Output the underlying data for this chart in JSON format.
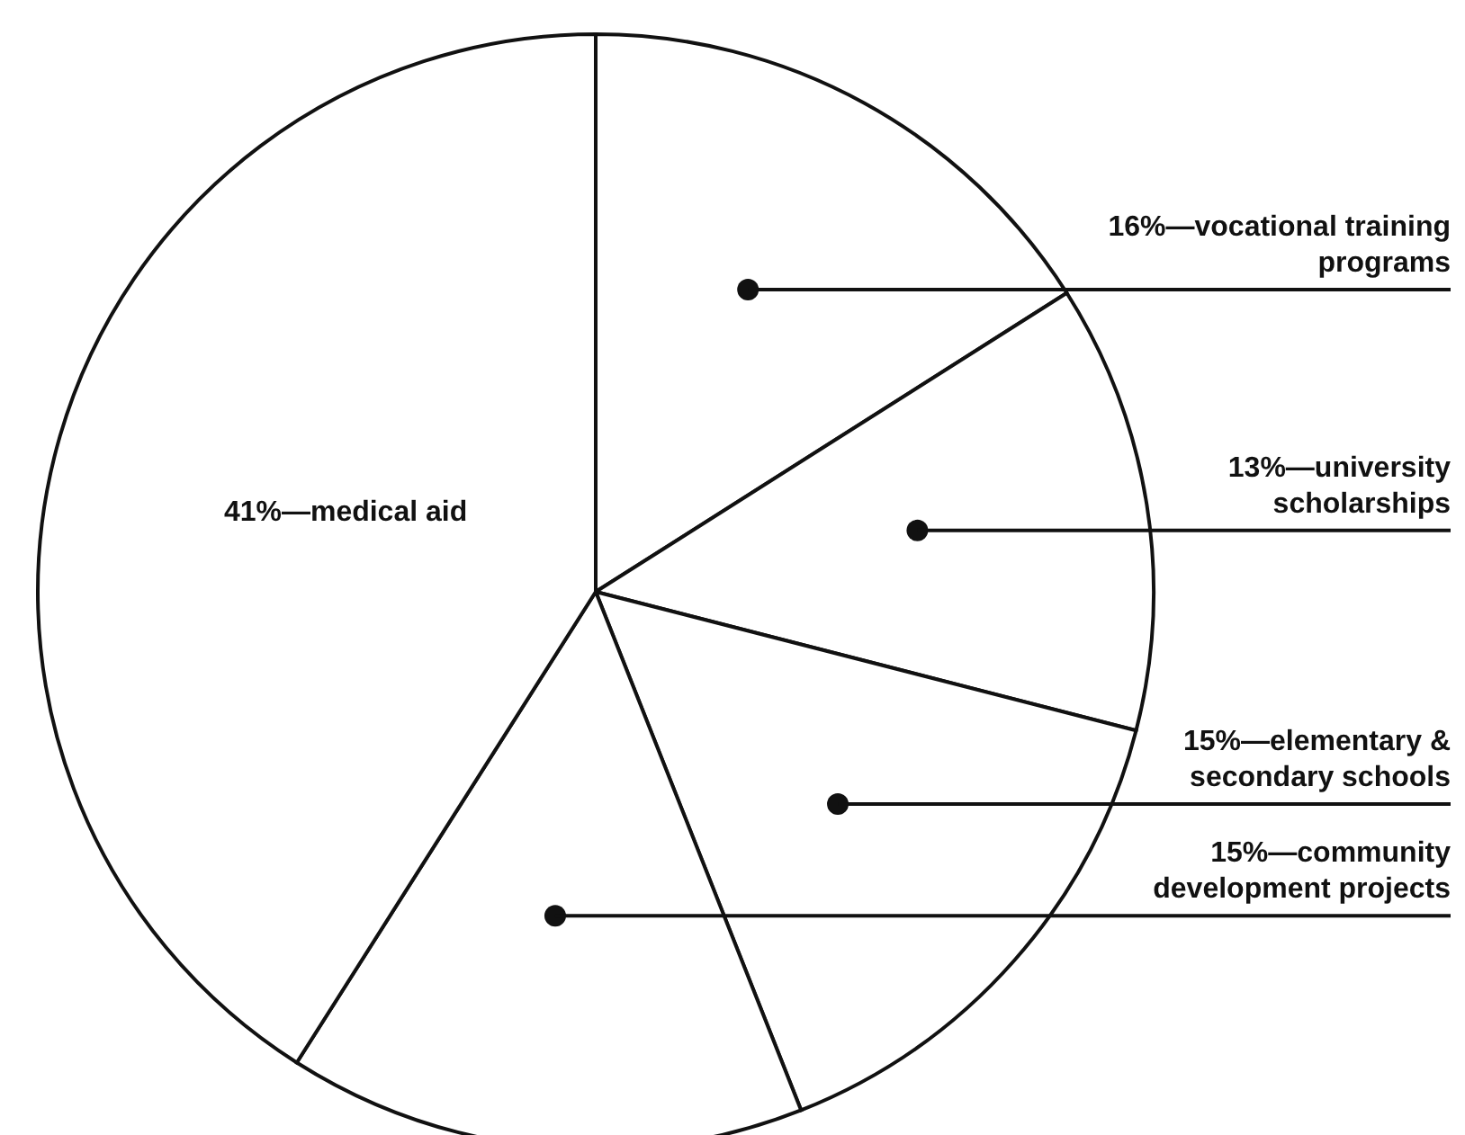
{
  "chart_data": {
    "type": "pie",
    "categories": [
      "16%—vocational training programs",
      "13%—university scholarships",
      "15%—elementary & secondary schools",
      "15%—community development projects",
      "41%—medical aid"
    ],
    "values": [
      16,
      13,
      15,
      15,
      41
    ],
    "colors": [
      "#ffffff",
      "#ffffff",
      "#ffffff",
      "#ffffff",
      "#ffffff"
    ],
    "legend": false
  }
}
